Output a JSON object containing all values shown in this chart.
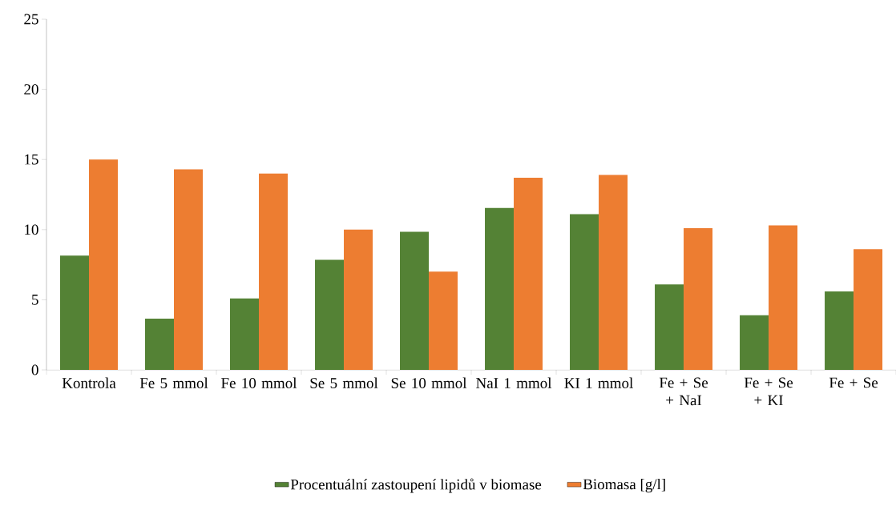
{
  "chart_data": {
    "type": "bar",
    "categories": [
      "Kontrola",
      "Fe 5 mmol",
      "Fe 10 mmol",
      "Se 5 mmol",
      "Se 10 mmol",
      "NaI 1 mmol",
      "KI 1 mmol",
      "Fe + Se + NaI",
      "Fe + Se + KI",
      "Fe + Se"
    ],
    "series": [
      {
        "name": "Procentuální zastoupení lipidů v biomase",
        "color": "#548235",
        "values": [
          8.15,
          3.65,
          5.1,
          7.85,
          9.85,
          11.55,
          11.1,
          6.1,
          3.9,
          5.6
        ]
      },
      {
        "name": "Biomasa [g/l]",
        "color": "#ed7d31",
        "values": [
          15.0,
          14.3,
          14.0,
          10.0,
          7.0,
          13.7,
          13.9,
          10.1,
          10.3,
          8.6
        ]
      }
    ],
    "ylim": [
      0,
      25
    ],
    "yticks": [
      0,
      5,
      10,
      15,
      20,
      25
    ],
    "grid": false,
    "legend": "bottom"
  }
}
